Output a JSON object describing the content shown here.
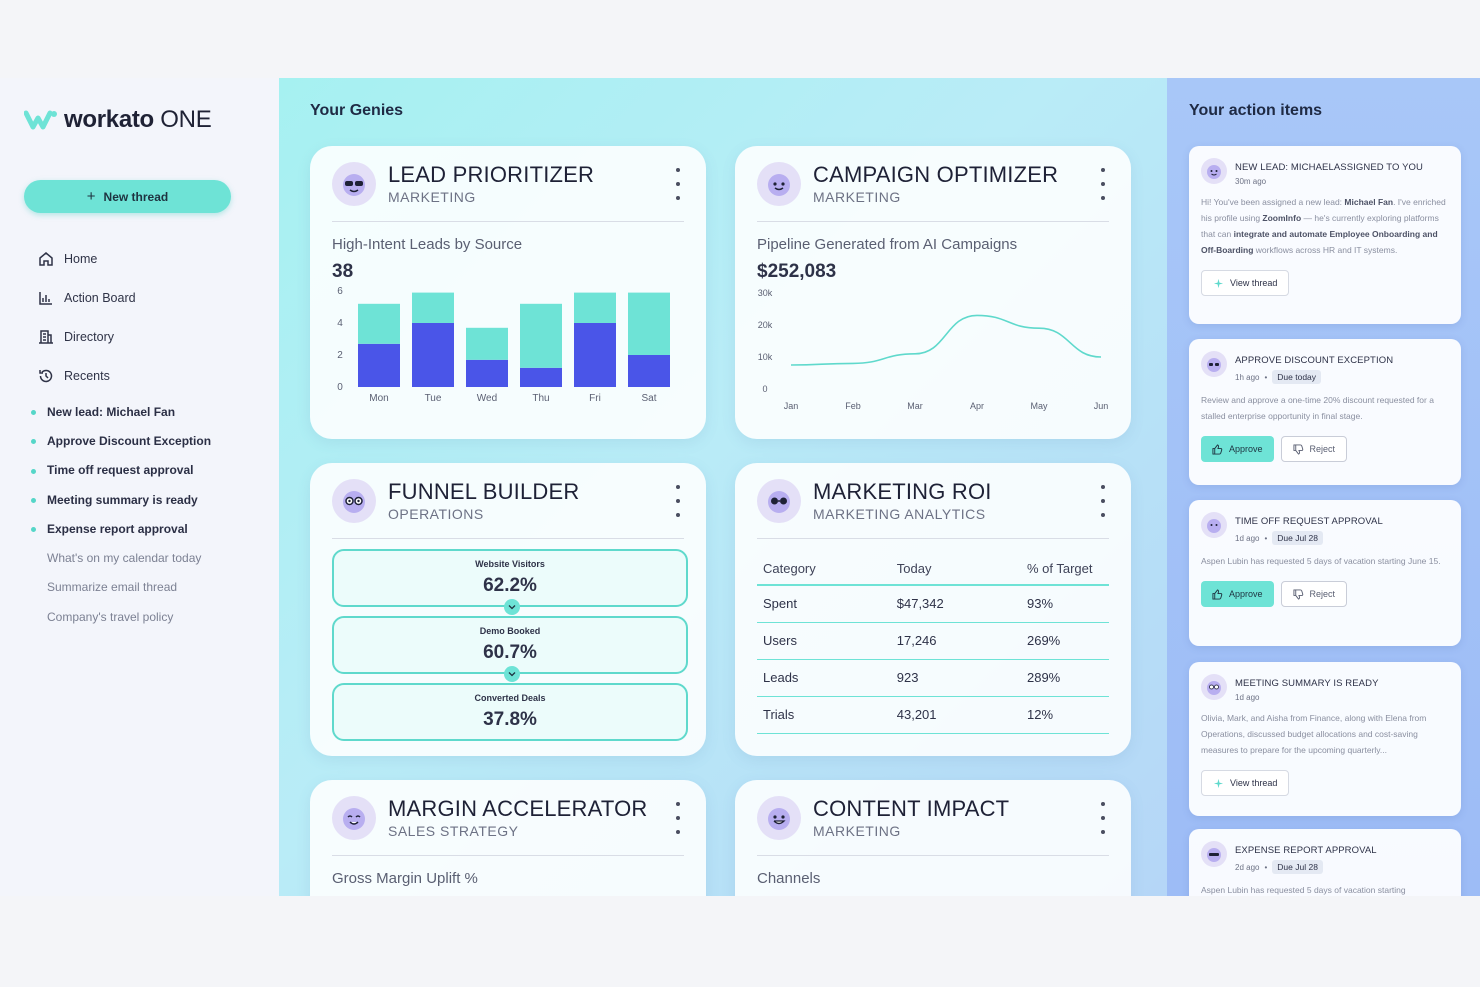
{
  "app": {
    "logo_word": "workato",
    "logo_suffix": "ONE",
    "brand_color": "#6ee3d6",
    "accent_color": "#4a55e8"
  },
  "sidebar": {
    "new_thread_label": "New thread",
    "nav": [
      {
        "label": "Home",
        "icon": "home-icon"
      },
      {
        "label": "Action Board",
        "icon": "bar-chart-icon"
      },
      {
        "label": "Directory",
        "icon": "building-icon"
      },
      {
        "label": "Recents",
        "icon": "history-icon"
      }
    ],
    "threads": [
      {
        "label": "New lead: Michael Fan",
        "active": true
      },
      {
        "label": "Approve Discount Exception",
        "active": true
      },
      {
        "label": "Time off request approval",
        "active": true
      },
      {
        "label": "Meeting summary is ready",
        "active": true
      },
      {
        "label": "Expense report approval",
        "active": true
      },
      {
        "label": "What's on my calendar today",
        "active": false
      },
      {
        "label": "Summarize email thread",
        "active": false
      },
      {
        "label": "Company's travel policy",
        "active": false
      }
    ]
  },
  "main": {
    "title": "Your Genies",
    "cards": {
      "lead": {
        "title": "LEAD PRIORITIZER",
        "subtitle": "MARKETING",
        "metric_label": "High-Intent Leads by Source",
        "metric_value": "38"
      },
      "campaign": {
        "title": "CAMPAIGN OPTIMIZER",
        "subtitle": "MARKETING",
        "metric_label": "Pipeline Generated from AI Campaigns",
        "metric_value": "$252,083"
      },
      "funnel": {
        "title": "FUNNEL BUILDER",
        "subtitle": "OPERATIONS",
        "stages": [
          {
            "label": "Website Visitors",
            "value": "62.2%"
          },
          {
            "label": "Demo Booked",
            "value": "60.7%"
          },
          {
            "label": "Converted Deals",
            "value": "37.8%"
          }
        ]
      },
      "roi": {
        "title": "MARKETING ROI",
        "subtitle": "MARKETING ANALYTICS",
        "headers": [
          "Category",
          "Today",
          "% of Target"
        ],
        "rows": [
          [
            "Spent",
            "$47,342",
            "93%"
          ],
          [
            "Users",
            "17,246",
            "269%"
          ],
          [
            "Leads",
            "923",
            "289%"
          ],
          [
            "Trials",
            "43,201",
            "12%"
          ]
        ]
      },
      "margin": {
        "title": "MARGIN ACCELERATOR",
        "subtitle": "SALES STRATEGY",
        "metric_label": "Gross Margin Uplift %"
      },
      "content": {
        "title": "CONTENT IMPACT",
        "subtitle": "MARKETING",
        "metric_label": "Channels"
      }
    }
  },
  "chart_data": [
    {
      "type": "bar",
      "stacked": true,
      "categories": [
        "Mon",
        "Tue",
        "Wed",
        "Thu",
        "Fri",
        "Sat"
      ],
      "yticks": [
        0,
        2,
        4,
        6
      ],
      "ylim": [
        0,
        6
      ],
      "series": [
        {
          "color": "#4a55e8",
          "values": [
            2.7,
            4.0,
            1.7,
            1.2,
            4.0,
            2.0
          ]
        },
        {
          "color": "#6ee3d6",
          "values": [
            2.5,
            1.9,
            2.0,
            4.0,
            1.9,
            3.9
          ]
        }
      ]
    },
    {
      "type": "line",
      "x": [
        "Jan",
        "Feb",
        "Mar",
        "Apr",
        "May",
        "Jun"
      ],
      "yticks": [
        "0",
        "10k",
        "20k",
        "30k"
      ],
      "ylim": [
        0,
        30000
      ],
      "color": "#5fd9cc",
      "points": [
        {
          "x": "Jan",
          "y": 7500
        },
        {
          "x": "Feb",
          "y": 8000
        },
        {
          "x": "Mar",
          "y": 11000
        },
        {
          "x": "Apr",
          "y": 23000
        },
        {
          "x": "May",
          "y": 19000
        },
        {
          "x": "Jun",
          "y": 10000
        }
      ]
    }
  ],
  "actions": {
    "title": "Your action items",
    "items": [
      {
        "title": "NEW LEAD: MICHAELASSIGNED TO YOU",
        "time": "30m ago",
        "due": "",
        "body_html": "Hi! You've been assigned a new lead: <b>Michael Fan</b>. I've enriched his profile using <b>ZoomInfo</b> — he's currently exploring platforms that can <b>integrate and automate Employee Onboarding and Off-Boarding</b> workflows across HR and IT systems.",
        "buttons": [
          "View thread"
        ]
      },
      {
        "title": "APPROVE DISCOUNT EXCEPTION",
        "time": "1h ago",
        "due": "Due today",
        "body_html": "Review and approve a one-time 20% discount requested for a stalled enterprise opportunity in final stage.",
        "buttons": [
          "Approve",
          "Reject"
        ]
      },
      {
        "title": "TIME OFF REQUEST APPROVAL",
        "time": "1d ago",
        "due": "Due Jul 28",
        "body_html": "Aspen Lubin has requested 5 days of vacation starting June 15.",
        "buttons": [
          "Approve",
          "Reject"
        ]
      },
      {
        "title": "MEETING SUMMARY IS READY",
        "time": "1d ago",
        "due": "",
        "body_html": "Olivia, Mark, and Aisha from Finance, along with Elena from Operations, discussed budget allocations and cost-saving measures to prepare for the upcoming quarterly...",
        "buttons": [
          "View thread"
        ]
      },
      {
        "title": "EXPENSE REPORT APPROVAL",
        "time": "2d ago",
        "due": "Due Jul 28",
        "body_html": "Aspen Lubin has requested 5 days of vacation starting",
        "buttons": []
      }
    ]
  }
}
